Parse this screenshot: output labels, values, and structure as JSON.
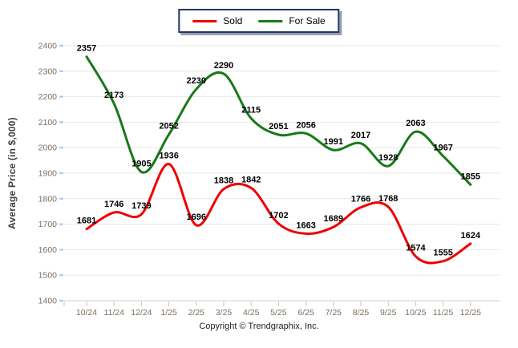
{
  "y_axis_title": "Average Price (in $,000)",
  "copyright": "Copyright © Trendgraphix, Inc.",
  "legend": {
    "position": "top-center",
    "items": [
      {
        "label": "Sold",
        "color": "#ee0000"
      },
      {
        "label": "For Sale",
        "color": "#177a17"
      }
    ]
  },
  "chart_data": {
    "type": "line",
    "title": "",
    "xlabel": "",
    "ylabel": "Average Price (in $,000)",
    "categories": [
      "10/24",
      "11/24",
      "12/24",
      "1/25",
      "2/25",
      "3/25",
      "4/25",
      "5/25",
      "6/25",
      "7/25",
      "8/25",
      "9/25",
      "10/25",
      "11/25",
      "12/25"
    ],
    "series": [
      {
        "name": "Sold",
        "color": "#ee0000",
        "values": [
          1681,
          1746,
          1739,
          1936,
          1696,
          1838,
          1842,
          1702,
          1663,
          1689,
          1766,
          1768,
          1574,
          1555,
          1624
        ]
      },
      {
        "name": "For Sale",
        "color": "#177a17",
        "values": [
          2357,
          2173,
          1905,
          2052,
          2230,
          2290,
          2115,
          2051,
          2056,
          1991,
          2017,
          1928,
          2063,
          1967,
          1855
        ]
      }
    ],
    "ylim": [
      1400,
      2400
    ],
    "ytick_step": 100,
    "grid": true,
    "data_labels": true,
    "legend_position": "top-center",
    "style": {
      "grid_color": "#e7e7e7",
      "axis_color": "#cfcfcf",
      "left_tick_color": "#a8c6e6",
      "bottom_tick_color": "#c6c6c6",
      "tick_label_color": "#7b6e5e",
      "data_label_color": "#000000",
      "line_width": 3
    }
  }
}
